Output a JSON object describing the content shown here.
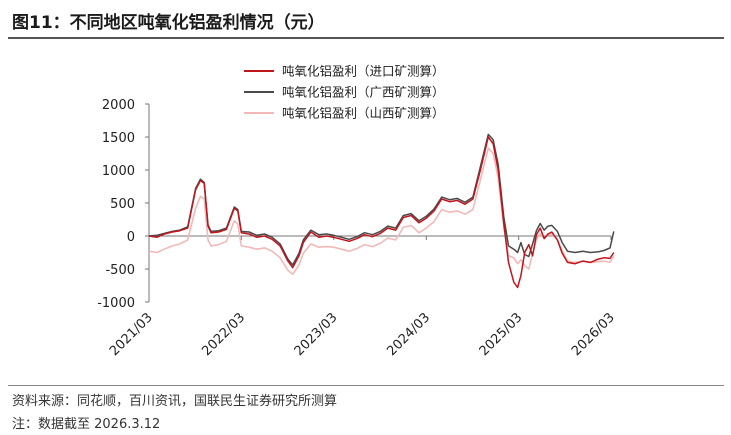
{
  "figure": {
    "title": "图11：不同地区吨氧化铝盈利情况（元）",
    "source": "资料来源：同花顺，百川资讯，国联民生证券研究所测算",
    "note": "注：数据截至 2026.3.12"
  },
  "colors": {
    "import": "#c0151b",
    "guangxi": "#4a4a4a",
    "shanxi": "#f2b9b9"
  },
  "chart_data": {
    "type": "line",
    "xlabel": "",
    "ylabel": "",
    "ylim": [
      -1000,
      2000
    ],
    "yticks": [
      -1000,
      -500,
      0,
      500,
      1000,
      1500,
      2000
    ],
    "xlim": [
      "2021-03",
      "2026-03"
    ],
    "xticks": [
      "2021/03",
      "2022/03",
      "2023/03",
      "2024/03",
      "2025/03",
      "2026/03"
    ],
    "grid": false,
    "legend_position": "top-right",
    "series": [
      {
        "name": "吨氧化铝盈利（进口矿测算）",
        "key": "import",
        "points": [
          [
            "2021-03-01",
            0
          ],
          [
            "2021-04-01",
            -20
          ],
          [
            "2021-05-01",
            30
          ],
          [
            "2021-06-01",
            60
          ],
          [
            "2021-07-01",
            80
          ],
          [
            "2021-08-01",
            120
          ],
          [
            "2021-09-01",
            700
          ],
          [
            "2021-09-20",
            840
          ],
          [
            "2021-10-05",
            800
          ],
          [
            "2021-10-20",
            150
          ],
          [
            "2021-11-01",
            50
          ],
          [
            "2021-12-01",
            60
          ],
          [
            "2022-01-01",
            100
          ],
          [
            "2022-02-01",
            420
          ],
          [
            "2022-02-15",
            380
          ],
          [
            "2022-03-01",
            50
          ],
          [
            "2022-04-01",
            30
          ],
          [
            "2022-05-01",
            -20
          ],
          [
            "2022-06-01",
            0
          ],
          [
            "2022-07-01",
            -50
          ],
          [
            "2022-08-01",
            -150
          ],
          [
            "2022-09-01",
            -380
          ],
          [
            "2022-09-20",
            -480
          ],
          [
            "2022-10-15",
            -300
          ],
          [
            "2022-11-01",
            -100
          ],
          [
            "2022-12-01",
            60
          ],
          [
            "2023-01-01",
            -20
          ],
          [
            "2023-02-01",
            0
          ],
          [
            "2023-03-01",
            -20
          ],
          [
            "2023-04-01",
            -50
          ],
          [
            "2023-05-01",
            -80
          ],
          [
            "2023-06-01",
            -40
          ],
          [
            "2023-07-01",
            20
          ],
          [
            "2023-08-01",
            -10
          ],
          [
            "2023-09-01",
            40
          ],
          [
            "2023-10-01",
            120
          ],
          [
            "2023-11-01",
            90
          ],
          [
            "2023-12-01",
            280
          ],
          [
            "2024-01-01",
            310
          ],
          [
            "2024-02-01",
            200
          ],
          [
            "2024-03-01",
            270
          ],
          [
            "2024-04-01",
            380
          ],
          [
            "2024-05-01",
            560
          ],
          [
            "2024-06-01",
            520
          ],
          [
            "2024-07-01",
            540
          ],
          [
            "2024-08-01",
            480
          ],
          [
            "2024-09-01",
            560
          ],
          [
            "2024-10-01",
            1000
          ],
          [
            "2024-11-01",
            1500
          ],
          [
            "2024-11-20",
            1400
          ],
          [
            "2024-12-10",
            1000
          ],
          [
            "2025-01-01",
            200
          ],
          [
            "2025-01-20",
            -400
          ],
          [
            "2025-02-10",
            -700
          ],
          [
            "2025-02-25",
            -780
          ],
          [
            "2025-03-10",
            -600
          ],
          [
            "2025-03-25",
            -250
          ],
          [
            "2025-04-10",
            -130
          ],
          [
            "2025-04-25",
            -300
          ],
          [
            "2025-05-10",
            20
          ],
          [
            "2025-05-25",
            120
          ],
          [
            "2025-06-10",
            -40
          ],
          [
            "2025-06-25",
            30
          ],
          [
            "2025-07-10",
            60
          ],
          [
            "2025-08-01",
            -60
          ],
          [
            "2025-08-20",
            -260
          ],
          [
            "2025-09-10",
            -400
          ],
          [
            "2025-10-10",
            -420
          ],
          [
            "2025-11-10",
            -380
          ],
          [
            "2025-12-10",
            -400
          ],
          [
            "2026-01-10",
            -350
          ],
          [
            "2026-02-01",
            -330
          ],
          [
            "2026-02-25",
            -340
          ],
          [
            "2026-03-12",
            -250
          ]
        ]
      },
      {
        "name": "吨氧化铝盈利（广西矿测算）",
        "key": "guangxi",
        "points": [
          [
            "2021-03-01",
            0
          ],
          [
            "2021-04-01",
            10
          ],
          [
            "2021-05-01",
            40
          ],
          [
            "2021-06-01",
            70
          ],
          [
            "2021-07-01",
            90
          ],
          [
            "2021-08-01",
            140
          ],
          [
            "2021-09-01",
            720
          ],
          [
            "2021-09-20",
            860
          ],
          [
            "2021-10-05",
            810
          ],
          [
            "2021-10-20",
            170
          ],
          [
            "2021-11-01",
            70
          ],
          [
            "2021-12-01",
            80
          ],
          [
            "2022-01-01",
            120
          ],
          [
            "2022-02-01",
            440
          ],
          [
            "2022-02-15",
            400
          ],
          [
            "2022-03-01",
            70
          ],
          [
            "2022-04-01",
            60
          ],
          [
            "2022-05-01",
            10
          ],
          [
            "2022-06-01",
            30
          ],
          [
            "2022-07-01",
            -20
          ],
          [
            "2022-08-01",
            -120
          ],
          [
            "2022-09-01",
            -350
          ],
          [
            "2022-09-20",
            -440
          ],
          [
            "2022-10-15",
            -260
          ],
          [
            "2022-11-01",
            -60
          ],
          [
            "2022-12-01",
            90
          ],
          [
            "2023-01-01",
            20
          ],
          [
            "2023-02-01",
            30
          ],
          [
            "2023-03-01",
            10
          ],
          [
            "2023-04-01",
            -20
          ],
          [
            "2023-05-01",
            -50
          ],
          [
            "2023-06-01",
            -10
          ],
          [
            "2023-07-01",
            50
          ],
          [
            "2023-08-01",
            20
          ],
          [
            "2023-09-01",
            70
          ],
          [
            "2023-10-01",
            150
          ],
          [
            "2023-11-01",
            120
          ],
          [
            "2023-12-01",
            310
          ],
          [
            "2024-01-01",
            340
          ],
          [
            "2024-02-01",
            230
          ],
          [
            "2024-03-01",
            300
          ],
          [
            "2024-04-01",
            410
          ],
          [
            "2024-05-01",
            590
          ],
          [
            "2024-06-01",
            550
          ],
          [
            "2024-07-01",
            570
          ],
          [
            "2024-08-01",
            510
          ],
          [
            "2024-09-01",
            590
          ],
          [
            "2024-10-01",
            1050
          ],
          [
            "2024-11-01",
            1540
          ],
          [
            "2024-11-20",
            1460
          ],
          [
            "2024-12-10",
            1080
          ],
          [
            "2025-01-01",
            300
          ],
          [
            "2025-01-20",
            -150
          ],
          [
            "2025-02-10",
            -200
          ],
          [
            "2025-02-25",
            -250
          ],
          [
            "2025-03-10",
            -100
          ],
          [
            "2025-03-25",
            -280
          ],
          [
            "2025-04-10",
            -310
          ],
          [
            "2025-04-25",
            -120
          ],
          [
            "2025-05-10",
            80
          ],
          [
            "2025-05-25",
            190
          ],
          [
            "2025-06-10",
            90
          ],
          [
            "2025-06-25",
            150
          ],
          [
            "2025-07-10",
            160
          ],
          [
            "2025-08-01",
            70
          ],
          [
            "2025-08-20",
            -100
          ],
          [
            "2025-09-10",
            -230
          ],
          [
            "2025-10-10",
            -250
          ],
          [
            "2025-11-10",
            -230
          ],
          [
            "2025-12-10",
            -250
          ],
          [
            "2026-01-10",
            -240
          ],
          [
            "2026-02-01",
            -220
          ],
          [
            "2026-02-25",
            -180
          ],
          [
            "2026-03-12",
            70
          ]
        ]
      },
      {
        "name": "吨氧化铝盈利（山西矿测算）",
        "key": "shanxi",
        "points": [
          [
            "2021-03-01",
            -230
          ],
          [
            "2021-04-01",
            -250
          ],
          [
            "2021-05-01",
            -200
          ],
          [
            "2021-06-01",
            -150
          ],
          [
            "2021-07-01",
            -120
          ],
          [
            "2021-08-01",
            -60
          ],
          [
            "2021-09-01",
            420
          ],
          [
            "2021-09-20",
            600
          ],
          [
            "2021-10-05",
            560
          ],
          [
            "2021-10-20",
            -60
          ],
          [
            "2021-11-01",
            -150
          ],
          [
            "2021-12-01",
            -130
          ],
          [
            "2022-01-01",
            -80
          ],
          [
            "2022-02-01",
            230
          ],
          [
            "2022-02-15",
            180
          ],
          [
            "2022-03-01",
            -150
          ],
          [
            "2022-04-01",
            -170
          ],
          [
            "2022-05-01",
            -200
          ],
          [
            "2022-06-01",
            -180
          ],
          [
            "2022-07-01",
            -230
          ],
          [
            "2022-08-01",
            -330
          ],
          [
            "2022-09-01",
            -520
          ],
          [
            "2022-09-20",
            -580
          ],
          [
            "2022-10-15",
            -440
          ],
          [
            "2022-11-01",
            -260
          ],
          [
            "2022-12-01",
            -120
          ],
          [
            "2023-01-01",
            -170
          ],
          [
            "2023-02-01",
            -160
          ],
          [
            "2023-03-01",
            -170
          ],
          [
            "2023-04-01",
            -200
          ],
          [
            "2023-05-01",
            -230
          ],
          [
            "2023-06-01",
            -190
          ],
          [
            "2023-07-01",
            -130
          ],
          [
            "2023-08-01",
            -160
          ],
          [
            "2023-09-01",
            -110
          ],
          [
            "2023-10-01",
            -30
          ],
          [
            "2023-11-01",
            -60
          ],
          [
            "2023-12-01",
            130
          ],
          [
            "2024-01-01",
            160
          ],
          [
            "2024-02-01",
            50
          ],
          [
            "2024-03-01",
            120
          ],
          [
            "2024-04-01",
            220
          ],
          [
            "2024-05-01",
            400
          ],
          [
            "2024-06-01",
            360
          ],
          [
            "2024-07-01",
            380
          ],
          [
            "2024-08-01",
            330
          ],
          [
            "2024-09-01",
            400
          ],
          [
            "2024-10-01",
            850
          ],
          [
            "2024-11-01",
            1330
          ],
          [
            "2024-11-20",
            1250
          ],
          [
            "2024-12-10",
            880
          ],
          [
            "2025-01-01",
            150
          ],
          [
            "2025-01-20",
            -300
          ],
          [
            "2025-02-10",
            -330
          ],
          [
            "2025-02-25",
            -420
          ],
          [
            "2025-03-10",
            -360
          ],
          [
            "2025-03-25",
            -450
          ],
          [
            "2025-04-10",
            -500
          ],
          [
            "2025-04-25",
            -260
          ],
          [
            "2025-05-10",
            -60
          ],
          [
            "2025-05-25",
            40
          ],
          [
            "2025-06-10",
            -40
          ],
          [
            "2025-06-25",
            20
          ],
          [
            "2025-07-10",
            30
          ],
          [
            "2025-08-01",
            -60
          ],
          [
            "2025-08-20",
            -220
          ],
          [
            "2025-09-10",
            -380
          ],
          [
            "2025-10-10",
            -400
          ],
          [
            "2025-11-10",
            -380
          ],
          [
            "2025-12-10",
            -400
          ],
          [
            "2026-01-10",
            -390
          ],
          [
            "2026-02-01",
            -380
          ],
          [
            "2026-02-25",
            -400
          ],
          [
            "2026-03-12",
            -300
          ]
        ]
      }
    ]
  }
}
